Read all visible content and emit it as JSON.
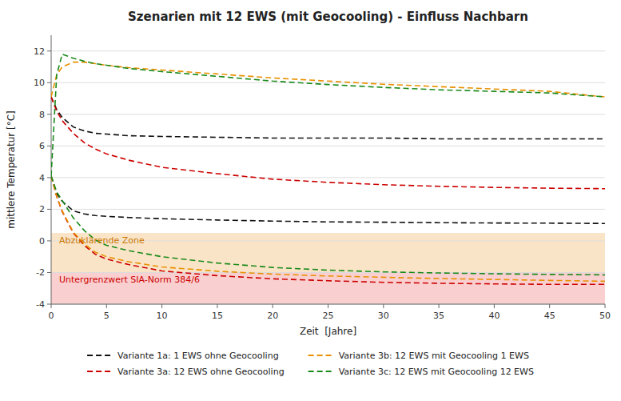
{
  "chart_data": {
    "type": "line",
    "title": "Szenarien mit 12 EWS (mit Geocooling) - Einfluss Nachbarn",
    "x_label": "Zeit  [Jahre]",
    "y_label": "mittlere Temperatur [°C]",
    "xlim": [
      0,
      50
    ],
    "ylim": [
      -4.0,
      13.0
    ],
    "xticks": [
      0,
      5,
      10,
      15,
      20,
      25,
      30,
      35,
      40,
      45,
      50
    ],
    "yticks": [
      -4,
      -2,
      0,
      2,
      4,
      6,
      8,
      10,
      12
    ],
    "grid": "y",
    "legend": "bottom",
    "line_style": "dashed",
    "zones": [
      {
        "label": "Abzuklärende Zone",
        "y0": -2.0,
        "y1": 0.5,
        "color": "#f5c990",
        "text_color": "#cc7700"
      },
      {
        "label": "Untergrenzwert SIA-Norm 384/6",
        "y0": -4.0,
        "y1": -2.0,
        "color": "#f5a0a0",
        "text_color": "#cc0000"
      }
    ],
    "x": [
      0,
      0.5,
      1,
      2,
      3,
      4,
      5,
      7,
      10,
      15,
      20,
      25,
      30,
      35,
      40,
      45,
      50
    ],
    "series": [
      {
        "name": "Variante 1a: 1 EWS ohne Geocooling",
        "color": "#111111",
        "values": [
          9.1,
          8.3,
          7.8,
          7.2,
          6.95,
          6.8,
          6.75,
          6.65,
          6.6,
          6.55,
          6.5,
          6.5,
          6.5,
          6.45,
          6.45,
          6.45,
          6.45
        ]
      },
      {
        "name": "Variante 1a: 1 EWS ohne Geocooling",
        "color": "#111111",
        "values": [
          4.1,
          3.0,
          2.5,
          1.9,
          1.7,
          1.6,
          1.55,
          1.48,
          1.4,
          1.32,
          1.25,
          1.2,
          1.18,
          1.15,
          1.13,
          1.12,
          1.1
        ]
      },
      {
        "name": "Variante 3a: 12 EWS ohne Geocooling",
        "color": "#cc0000",
        "values": [
          9.1,
          8.2,
          7.6,
          6.8,
          6.2,
          5.8,
          5.5,
          5.1,
          4.65,
          4.25,
          3.9,
          3.7,
          3.55,
          3.45,
          3.38,
          3.33,
          3.3
        ]
      },
      {
        "name": "Variante 3a: 12 EWS ohne Geocooling",
        "color": "#cc0000",
        "values": [
          4.1,
          2.8,
          1.85,
          0.5,
          -0.3,
          -0.85,
          -1.15,
          -1.5,
          -1.9,
          -2.2,
          -2.4,
          -2.52,
          -2.62,
          -2.68,
          -2.72,
          -2.75,
          -2.75
        ]
      },
      {
        "name": "Variante 3b: 12 EWS mit Geocooling 1 EWS",
        "color": "#e89000",
        "values": [
          9.1,
          10.5,
          11.0,
          11.3,
          11.3,
          11.2,
          11.1,
          10.95,
          10.8,
          10.55,
          10.3,
          10.1,
          9.9,
          9.75,
          9.6,
          9.45,
          9.1
        ]
      },
      {
        "name": "Variante 3b: 12 EWS mit Geocooling 1 EWS",
        "color": "#e89000",
        "values": [
          4.1,
          2.8,
          1.9,
          0.55,
          -0.2,
          -0.72,
          -1.0,
          -1.32,
          -1.65,
          -1.92,
          -2.1,
          -2.22,
          -2.3,
          -2.38,
          -2.44,
          -2.5,
          -2.55
        ]
      },
      {
        "name": "Variante 3c: 12 EWS mit Geocooling 12 EWS",
        "color": "#1a8a1a",
        "values": [
          4.1,
          10.5,
          11.8,
          11.55,
          11.35,
          11.2,
          11.1,
          10.9,
          10.7,
          10.4,
          10.1,
          9.88,
          9.7,
          9.55,
          9.45,
          9.35,
          9.1
        ]
      },
      {
        "name": "Variante 3c: 12 EWS mit Geocooling 12 EWS",
        "color": "#1a8a1a",
        "values": [
          4.1,
          3.1,
          2.55,
          1.45,
          0.65,
          0.05,
          -0.28,
          -0.62,
          -1.0,
          -1.4,
          -1.68,
          -1.85,
          -1.96,
          -2.03,
          -2.08,
          -2.12,
          -2.15
        ]
      }
    ]
  }
}
